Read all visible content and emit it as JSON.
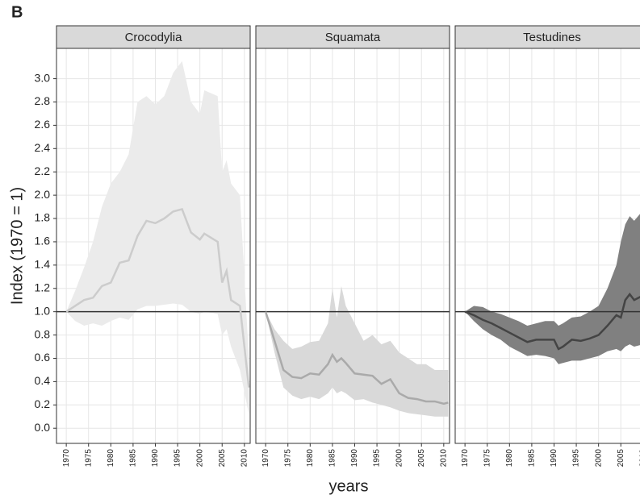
{
  "chart_data": {
    "type": "line",
    "label": "B",
    "y_label": "Index (1970 = 1)",
    "x_label": "years",
    "xlim": [
      1967.8,
      2011.3
    ],
    "ylim": [
      -0.13,
      3.26
    ],
    "xticks": [
      1970,
      1975,
      1980,
      1985,
      1990,
      1995,
      2000,
      2005,
      2010
    ],
    "yticks": [
      {
        "value": 0,
        "label": "0.0"
      },
      0.2,
      0.4,
      0.6,
      0.8,
      {
        "value": 1,
        "label": "1.0"
      },
      1.2,
      1.4,
      1.6,
      1.8,
      {
        "value": 2,
        "label": "2.0"
      },
      2.2,
      2.4,
      2.6,
      2.8,
      {
        "value": 3,
        "label": "3.0"
      }
    ],
    "reference_line": 1,
    "grid": true,
    "panels": [
      {
        "title": "Crocodylia",
        "color": "#cccccc",
        "band_color": "#ebebeb",
        "x": [
          1970,
          1972,
          1974,
          1976,
          1978,
          1980,
          1982,
          1984,
          1986,
          1988,
          1990,
          1992,
          1994,
          1996,
          1998,
          2000,
          2001,
          2004,
          2005,
          2006,
          2007,
          2009,
          2011
        ],
        "values": [
          1.0,
          1.05,
          1.1,
          1.12,
          1.22,
          1.25,
          1.42,
          1.44,
          1.65,
          1.78,
          1.76,
          1.8,
          1.86,
          1.88,
          1.68,
          1.62,
          1.67,
          1.6,
          1.25,
          1.35,
          1.1,
          1.05,
          0.35
        ],
        "upper": [
          1.0,
          1.18,
          1.38,
          1.6,
          1.9,
          2.1,
          2.2,
          2.35,
          2.8,
          2.85,
          2.78,
          2.85,
          3.05,
          3.15,
          2.8,
          2.7,
          2.9,
          2.85,
          2.2,
          2.3,
          2.1,
          2.0,
          0.6
        ],
        "lower": [
          1.0,
          0.92,
          0.88,
          0.9,
          0.88,
          0.92,
          0.95,
          0.93,
          1.02,
          1.05,
          1.05,
          1.06,
          1.07,
          1.06,
          1.0,
          0.98,
          1.0,
          0.98,
          0.8,
          0.85,
          0.7,
          0.5,
          0.12
        ]
      },
      {
        "title": "Squamata",
        "color": "#aaaaaa",
        "band_color": "#d9d9d9",
        "x": [
          1970,
          1972,
          1974,
          1976,
          1978,
          1980,
          1982,
          1984,
          1985,
          1986,
          1987,
          1988,
          1990,
          1992,
          1994,
          1996,
          1998,
          2000,
          2002,
          2004,
          2006,
          2008,
          2010,
          2011
        ],
        "values": [
          1.0,
          0.75,
          0.5,
          0.44,
          0.43,
          0.47,
          0.46,
          0.55,
          0.63,
          0.57,
          0.6,
          0.56,
          0.47,
          0.46,
          0.45,
          0.38,
          0.42,
          0.3,
          0.26,
          0.25,
          0.23,
          0.23,
          0.21,
          0.22
        ],
        "upper": [
          1.0,
          0.85,
          0.75,
          0.68,
          0.7,
          0.74,
          0.75,
          0.9,
          1.2,
          0.95,
          1.22,
          1.05,
          0.9,
          0.75,
          0.8,
          0.72,
          0.75,
          0.65,
          0.6,
          0.55,
          0.55,
          0.5,
          0.5,
          0.5
        ],
        "lower": [
          1.0,
          0.65,
          0.35,
          0.28,
          0.25,
          0.27,
          0.25,
          0.3,
          0.35,
          0.3,
          0.32,
          0.3,
          0.24,
          0.25,
          0.22,
          0.2,
          0.18,
          0.15,
          0.13,
          0.12,
          0.11,
          0.1,
          0.1,
          0.1
        ]
      },
      {
        "title": "Testudines",
        "color": "#444444",
        "band_color": "#808080",
        "x": [
          1970,
          1972,
          1974,
          1976,
          1978,
          1980,
          1982,
          1984,
          1986,
          1988,
          1990,
          1991,
          1992,
          1994,
          1996,
          1998,
          2000,
          2002,
          2004,
          2005,
          2006,
          2007,
          2008,
          2010,
          2011
        ],
        "values": [
          1.0,
          0.97,
          0.93,
          0.9,
          0.86,
          0.82,
          0.78,
          0.74,
          0.76,
          0.76,
          0.76,
          0.68,
          0.7,
          0.76,
          0.75,
          0.77,
          0.8,
          0.88,
          0.97,
          0.95,
          1.1,
          1.15,
          1.1,
          1.14,
          1.13
        ],
        "upper": [
          1.0,
          1.05,
          1.04,
          1.0,
          0.98,
          0.95,
          0.92,
          0.88,
          0.9,
          0.92,
          0.92,
          0.88,
          0.9,
          0.95,
          0.96,
          1.0,
          1.05,
          1.2,
          1.4,
          1.6,
          1.75,
          1.82,
          1.78,
          1.87,
          1.85
        ],
        "lower": [
          1.0,
          0.92,
          0.85,
          0.8,
          0.76,
          0.7,
          0.66,
          0.62,
          0.63,
          0.62,
          0.6,
          0.55,
          0.56,
          0.58,
          0.58,
          0.6,
          0.62,
          0.66,
          0.68,
          0.66,
          0.7,
          0.72,
          0.7,
          0.72,
          0.7
        ]
      }
    ]
  }
}
